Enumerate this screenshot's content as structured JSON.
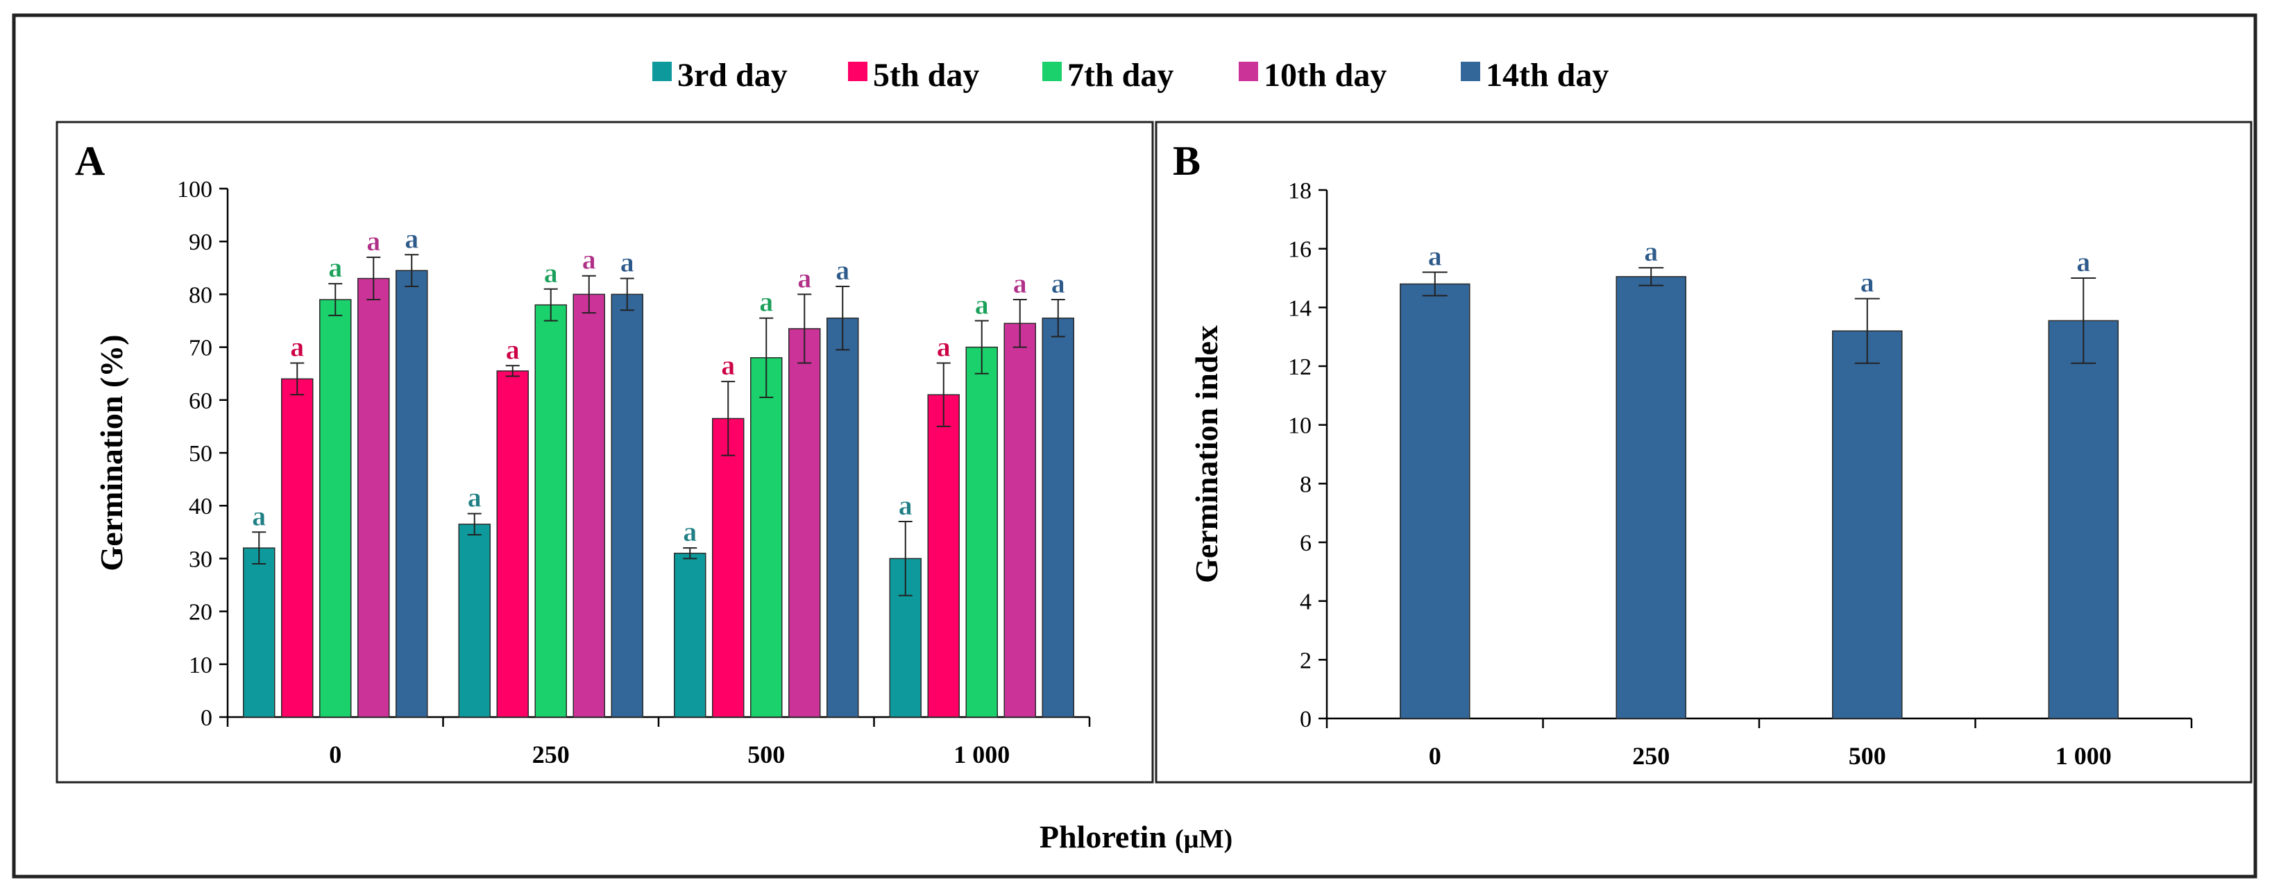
{
  "figure": {
    "xlabel_main": "Phloretin",
    "xlabel_unit": "(µM)"
  },
  "colors": {
    "series": [
      "#0e9a9c",
      "#ff0066",
      "#1ad16b",
      "#cc3399",
      "#336699"
    ],
    "letters": [
      "#1f7f85",
      "#cc0044",
      "#1aa05a",
      "#b03088",
      "#2d5a8a"
    ],
    "panel_b_bar": "#336699"
  },
  "legend": {
    "items": [
      "3rd day",
      "5th day",
      "7th day",
      "10th day",
      "14th day"
    ]
  },
  "chart_data": [
    {
      "type": "bar",
      "panel_label": "A",
      "categories": [
        "0",
        "250",
        "500",
        "1 000"
      ],
      "series": [
        {
          "name": "3rd day",
          "values": [
            32,
            36.5,
            31,
            30
          ],
          "errors": [
            3,
            2,
            1,
            7
          ]
        },
        {
          "name": "5th day",
          "values": [
            64,
            65.5,
            56.5,
            61
          ],
          "errors": [
            3,
            1,
            7,
            6
          ]
        },
        {
          "name": "7th day",
          "values": [
            79,
            78,
            68,
            70
          ],
          "errors": [
            3,
            3,
            7.5,
            5
          ]
        },
        {
          "name": "10th day",
          "values": [
            83,
            80,
            73.5,
            74.5
          ],
          "errors": [
            4,
            3.5,
            6.5,
            4.5
          ]
        },
        {
          "name": "14th day",
          "values": [
            84.5,
            80,
            75.5,
            75.5
          ],
          "errors": [
            3,
            3,
            6,
            3.5
          ]
        }
      ],
      "annotation_letter": "a",
      "xlabel": "Phloretin (µM)",
      "ylabel": "Germination (%)",
      "ylim": [
        0,
        100
      ],
      "yticks": [
        0,
        10,
        20,
        30,
        40,
        50,
        60,
        70,
        80,
        90,
        100
      ],
      "grid": false,
      "legend": "top"
    },
    {
      "type": "bar",
      "panel_label": "B",
      "categories": [
        "0",
        "250",
        "500",
        "1 000"
      ],
      "series": [
        {
          "name": "Germination index",
          "values": [
            14.8,
            15.05,
            13.2,
            13.55
          ],
          "errors": [
            0.4,
            0.3,
            1.1,
            1.45
          ]
        }
      ],
      "annotation_letter": "a",
      "xlabel": "Phloretin (µM)",
      "ylabel": "Germination index",
      "ylim": [
        0,
        18
      ],
      "yticks": [
        0,
        2,
        4,
        6,
        8,
        10,
        12,
        14,
        16,
        18
      ],
      "grid": false
    }
  ]
}
